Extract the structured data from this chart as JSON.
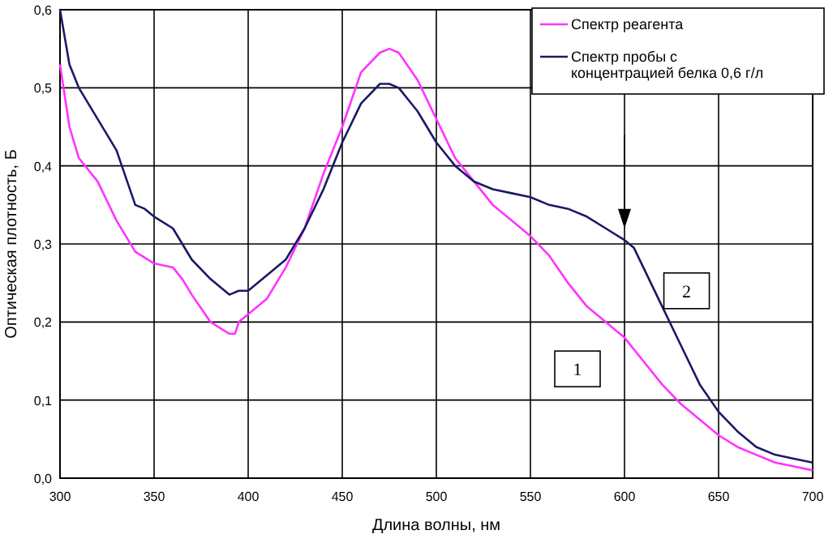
{
  "chart_data": {
    "type": "line",
    "xlabel": "Длина волны, нм",
    "ylabel": "Оптическая плотность, Б",
    "xlim": [
      300,
      700
    ],
    "xticks": [
      300,
      350,
      400,
      450,
      500,
      550,
      600,
      650,
      700
    ],
    "ylim": [
      0,
      0.6
    ],
    "yticks": [
      {
        "value": 0,
        "label": "0,0"
      },
      {
        "value": 0.1,
        "label": "0,1"
      },
      {
        "value": 0.2,
        "label": "0,2"
      },
      {
        "value": 0.3,
        "label": "0,3"
      },
      {
        "value": 0.4,
        "label": "0,4"
      },
      {
        "value": 0.5,
        "label": "0,5"
      },
      {
        "value": 0.6,
        "label": "0,6"
      }
    ],
    "grid": true,
    "legend": "top right",
    "annotations": [
      {
        "text": "1",
        "x": 575,
        "y": 0.14
      },
      {
        "text": "2",
        "x": 633,
        "y": 0.24
      }
    ],
    "series": [
      {
        "name": "Спектр реагента",
        "color": "#ff33ff",
        "x": [
          300,
          305,
          310,
          320,
          330,
          340,
          350,
          360,
          365,
          370,
          380,
          390,
          393,
          395,
          400,
          410,
          420,
          430,
          440,
          450,
          460,
          470,
          475,
          480,
          490,
          500,
          510,
          520,
          530,
          540,
          550,
          560,
          570,
          580,
          590,
          600,
          610,
          620,
          630,
          640,
          650,
          660,
          670,
          680,
          690,
          700
        ],
        "values": [
          0.53,
          0.45,
          0.41,
          0.38,
          0.33,
          0.29,
          0.275,
          0.27,
          0.255,
          0.235,
          0.2,
          0.185,
          0.185,
          0.2,
          0.21,
          0.23,
          0.27,
          0.32,
          0.39,
          0.45,
          0.52,
          0.545,
          0.55,
          0.545,
          0.51,
          0.46,
          0.41,
          0.38,
          0.35,
          0.33,
          0.31,
          0.285,
          0.25,
          0.22,
          0.2,
          0.18,
          0.15,
          0.12,
          0.095,
          0.075,
          0.055,
          0.04,
          0.03,
          0.02,
          0.015,
          0.01
        ]
      },
      {
        "name": "Спектр пробы с концентрацией белка 0,6 г/л",
        "color": "#1a1a66",
        "x": [
          300,
          305,
          310,
          320,
          330,
          340,
          345,
          350,
          360,
          365,
          370,
          380,
          390,
          395,
          400,
          410,
          420,
          430,
          440,
          450,
          460,
          470,
          475,
          480,
          490,
          500,
          510,
          520,
          530,
          540,
          550,
          560,
          570,
          580,
          590,
          600,
          605,
          610,
          620,
          630,
          640,
          650,
          660,
          670,
          680,
          690,
          700
        ],
        "values": [
          0.6,
          0.53,
          0.5,
          0.46,
          0.42,
          0.35,
          0.345,
          0.335,
          0.32,
          0.3,
          0.28,
          0.255,
          0.235,
          0.24,
          0.24,
          0.26,
          0.28,
          0.32,
          0.37,
          0.43,
          0.48,
          0.505,
          0.505,
          0.5,
          0.47,
          0.43,
          0.4,
          0.38,
          0.37,
          0.365,
          0.36,
          0.35,
          0.345,
          0.335,
          0.32,
          0.305,
          0.295,
          0.27,
          0.22,
          0.17,
          0.12,
          0.085,
          0.06,
          0.04,
          0.03,
          0.025,
          0.02
        ]
      }
    ]
  }
}
